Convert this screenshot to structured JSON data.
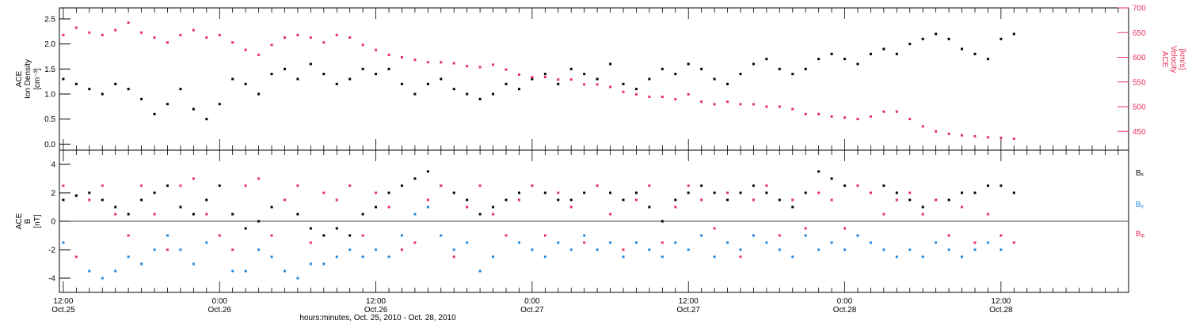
{
  "colors": {
    "black": "#000000",
    "red": "#e8305a",
    "blue": "#1f86e0"
  },
  "x_axis": {
    "title": "hours:minutes, Oct. 25, 2010 - Oct. 28, 2010",
    "ticks": [
      {
        "hours": 12,
        "time": "12:00",
        "date": "Oct.25"
      },
      {
        "hours": 24,
        "time": "0:00",
        "date": "Oct.26"
      },
      {
        "hours": 36,
        "time": "12:00",
        "date": "Oct.26"
      },
      {
        "hours": 48,
        "time": "0:00",
        "date": "Oct.27"
      },
      {
        "hours": 60,
        "time": "12:00",
        "date": "Oct.27"
      },
      {
        "hours": 72,
        "time": "0:00",
        "date": "Oct.28"
      },
      {
        "hours": 84,
        "time": "12:00",
        "date": "Oct.28"
      }
    ],
    "range_hours": [
      11.7,
      93.8
    ]
  },
  "chart_data": [
    {
      "type": "scatter",
      "title": "",
      "xlabel": "hours:minutes, Oct. 25, 2010 - Oct. 28, 2010",
      "x_units": "hours after Oct. 25 00:00",
      "ylabel_left": [
        "ACE",
        "Ion Density",
        "[cm⁻³]"
      ],
      "ylabel_right": [
        "ACE",
        "Velocity",
        "[km/s]"
      ],
      "ylim_left": [
        -0.12,
        2.72
      ],
      "ylim_right": [
        412,
        700
      ],
      "yticks_left": [
        "0.0",
        "0.5",
        "1.0",
        "1.5",
        "2.0",
        "2.5"
      ],
      "yticks_right": [
        "450",
        "500",
        "550",
        "600",
        "650",
        "700"
      ],
      "series": [
        {
          "axis": "left",
          "color": "#000000",
          "x": [
            12,
            13,
            14,
            15,
            16,
            17,
            18,
            19,
            20,
            21,
            22,
            23,
            24,
            25,
            26,
            27,
            28,
            29,
            30,
            31,
            32,
            33,
            34,
            35,
            36,
            37,
            38,
            39,
            40,
            41,
            42,
            43,
            44,
            45,
            46,
            47,
            48,
            49,
            50,
            51,
            52,
            53,
            54,
            55,
            56,
            57,
            58,
            59,
            60,
            61,
            62,
            63,
            64,
            65,
            66,
            67,
            68,
            69,
            70,
            71,
            72,
            73,
            74,
            75,
            76,
            77,
            78,
            79,
            80,
            81,
            82,
            83,
            84,
            85
          ],
          "y": [
            1.3,
            1.2,
            1.1,
            1.0,
            1.2,
            1.1,
            0.9,
            0.6,
            0.8,
            1.1,
            0.7,
            0.5,
            0.8,
            1.3,
            1.2,
            1.0,
            1.4,
            1.5,
            1.3,
            1.6,
            1.4,
            1.2,
            1.3,
            1.5,
            1.4,
            1.5,
            1.2,
            1.0,
            1.2,
            1.3,
            1.1,
            1.0,
            0.9,
            1.0,
            1.2,
            1.1,
            1.3,
            1.4,
            1.2,
            1.5,
            1.4,
            1.3,
            1.6,
            1.2,
            1.1,
            1.3,
            1.5,
            1.4,
            1.6,
            1.5,
            1.3,
            1.2,
            1.4,
            1.6,
            1.7,
            1.5,
            1.4,
            1.5,
            1.7,
            1.8,
            1.7,
            1.6,
            1.8,
            1.9,
            1.8,
            2.0,
            2.1,
            2.2,
            2.1,
            1.9,
            1.8,
            1.7,
            2.1,
            2.2
          ]
        },
        {
          "axis": "right",
          "color": "#e8305a",
          "x": [
            12,
            13,
            14,
            15,
            16,
            17,
            18,
            19,
            20,
            21,
            22,
            23,
            24,
            25,
            26,
            27,
            28,
            29,
            30,
            31,
            32,
            33,
            34,
            35,
            36,
            37,
            38,
            39,
            40,
            41,
            42,
            43,
            44,
            45,
            46,
            47,
            48,
            49,
            50,
            51,
            52,
            53,
            54,
            55,
            56,
            57,
            58,
            59,
            60,
            61,
            62,
            63,
            64,
            65,
            66,
            67,
            68,
            69,
            70,
            71,
            72,
            73,
            74,
            75,
            76,
            77,
            78,
            79,
            80,
            81,
            82,
            83,
            84,
            85
          ],
          "y": [
            645,
            660,
            650,
            645,
            655,
            670,
            650,
            640,
            630,
            645,
            655,
            640,
            645,
            630,
            615,
            605,
            625,
            640,
            645,
            640,
            630,
            645,
            640,
            625,
            615,
            605,
            600,
            595,
            590,
            590,
            588,
            582,
            580,
            585,
            575,
            565,
            560,
            560,
            555,
            555,
            545,
            545,
            540,
            530,
            525,
            520,
            520,
            515,
            525,
            510,
            505,
            510,
            505,
            505,
            500,
            500,
            495,
            485,
            485,
            480,
            478,
            475,
            480,
            490,
            490,
            475,
            460,
            450,
            445,
            442,
            440,
            438,
            437,
            435
          ]
        }
      ]
    },
    {
      "type": "scatter",
      "title": "",
      "xlabel": "hours:minutes, Oct. 25, 2010 - Oct. 28, 2010",
      "x_units": "hours after Oct. 25 00:00",
      "ylabel": [
        "ACE",
        "B",
        "[nT]"
      ],
      "ylim": [
        -5.0,
        5.0
      ],
      "yticks": [
        "-4",
        "-2",
        "0",
        "2",
        "4"
      ],
      "zero_line": true,
      "legend_position": "right",
      "series": [
        {
          "name": "Bₓ",
          "color": "#000000",
          "x": [
            12,
            13,
            14,
            15,
            16,
            17,
            18,
            19,
            20,
            21,
            22,
            23,
            24,
            25,
            26,
            27,
            28,
            29,
            30,
            31,
            32,
            33,
            34,
            35,
            36,
            37,
            38,
            39,
            40,
            41,
            42,
            43,
            44,
            45,
            46,
            47,
            48,
            49,
            50,
            51,
            52,
            53,
            54,
            55,
            56,
            57,
            58,
            59,
            60,
            61,
            62,
            63,
            64,
            65,
            66,
            67,
            68,
            69,
            70,
            71,
            72,
            73,
            74,
            75,
            76,
            77,
            78,
            79,
            80,
            81,
            82,
            83,
            84,
            85
          ],
          "y": [
            1.5,
            1.8,
            2.0,
            1.5,
            1.0,
            0.5,
            1.5,
            2.0,
            2.5,
            1.0,
            0.5,
            1.5,
            2.5,
            0.5,
            -0.5,
            0.0,
            1.0,
            1.5,
            0.5,
            -0.5,
            -1.0,
            -0.5,
            -1.0,
            0.5,
            1.0,
            2.0,
            2.5,
            3.0,
            3.5,
            2.5,
            2.0,
            1.5,
            0.5,
            1.0,
            1.5,
            2.0,
            2.5,
            2.0,
            1.5,
            1.5,
            2.0,
            2.5,
            2.0,
            1.5,
            2.0,
            1.0,
            0.0,
            1.5,
            2.0,
            2.5,
            2.0,
            1.5,
            2.0,
            2.5,
            2.0,
            1.5,
            1.0,
            2.0,
            3.5,
            3.0,
            2.5,
            2.5,
            2.0,
            2.5,
            2.0,
            1.5,
            1.0,
            1.5,
            1.5,
            2.0,
            2.0,
            2.5,
            2.5,
            2.0
          ]
        },
        {
          "name": "Bᵧ",
          "color": "#1f86e0",
          "x": [
            12,
            13,
            14,
            15,
            16,
            17,
            18,
            19,
            20,
            21,
            22,
            23,
            24,
            25,
            26,
            27,
            28,
            29,
            30,
            31,
            32,
            33,
            34,
            35,
            36,
            37,
            38,
            39,
            40,
            41,
            42,
            43,
            44,
            45,
            46,
            47,
            48,
            49,
            50,
            51,
            52,
            53,
            54,
            55,
            56,
            57,
            58,
            59,
            60,
            61,
            62,
            63,
            64,
            65,
            66,
            67,
            68,
            69,
            70,
            71,
            72,
            73,
            74,
            75,
            76,
            77,
            78,
            79,
            80,
            81,
            82,
            83,
            84,
            85
          ],
          "y": [
            -1.5,
            -2.5,
            -3.5,
            -4.0,
            -3.5,
            -2.5,
            -3.0,
            -2.0,
            -1.0,
            -2.0,
            -3.0,
            -1.5,
            -1.0,
            -3.5,
            -3.5,
            -2.0,
            -2.5,
            -3.5,
            -4.0,
            -3.0,
            -3.0,
            -2.5,
            -2.0,
            -2.5,
            -2.0,
            -2.5,
            -1.0,
            0.5,
            1.0,
            -1.0,
            -2.0,
            -1.5,
            -3.5,
            -2.5,
            -1.0,
            -1.5,
            -2.0,
            -2.5,
            -1.5,
            -2.0,
            -1.0,
            -2.0,
            -1.5,
            -2.5,
            -1.5,
            -2.0,
            -2.5,
            -1.5,
            -2.0,
            -1.0,
            -2.5,
            -1.5,
            -2.0,
            -1.0,
            -1.5,
            -2.0,
            -2.5,
            -1.0,
            -2.0,
            -1.5,
            -2.0,
            -1.0,
            -1.5,
            -2.0,
            -2.5,
            -2.0,
            -2.5,
            -1.5,
            -2.0,
            -2.5,
            -2.0,
            -1.5,
            -2.0,
            -1.5
          ]
        },
        {
          "name": "Bᵩ",
          "color": "#e8305a",
          "x": [
            12,
            13,
            14,
            15,
            16,
            17,
            18,
            19,
            20,
            21,
            22,
            23,
            24,
            25,
            26,
            27,
            28,
            29,
            30,
            31,
            32,
            33,
            34,
            35,
            36,
            37,
            38,
            39,
            40,
            41,
            42,
            43,
            44,
            45,
            46,
            47,
            48,
            49,
            50,
            51,
            52,
            53,
            54,
            55,
            56,
            57,
            58,
            59,
            60,
            61,
            62,
            63,
            64,
            65,
            66,
            67,
            68,
            69,
            70,
            71,
            72,
            73,
            74,
            75,
            76,
            77,
            78,
            79,
            80,
            81,
            82,
            83,
            84,
            85
          ],
          "y": [
            2.5,
            -2.5,
            1.5,
            2.5,
            0.5,
            -1.0,
            2.5,
            0.5,
            -2.0,
            2.5,
            3.0,
            0.5,
            -1.0,
            -2.0,
            2.5,
            3.0,
            -1.0,
            1.5,
            2.5,
            -1.5,
            2.0,
            1.5,
            2.5,
            -1.0,
            2.0,
            1.0,
            -2.0,
            -1.5,
            1.5,
            2.5,
            -2.5,
            1.0,
            2.5,
            0.5,
            -1.0,
            1.5,
            2.5,
            -1.0,
            2.0,
            1.0,
            -1.5,
            2.5,
            0.5,
            -2.0,
            1.5,
            2.5,
            -1.5,
            1.0,
            2.5,
            1.5,
            -0.5,
            2.0,
            -2.5,
            1.5,
            2.5,
            -1.0,
            1.5,
            -0.5,
            2.0,
            1.5,
            -0.5,
            2.5,
            2.0,
            0.5,
            1.5,
            2.0,
            0.5,
            1.5,
            -1.0,
            1.0,
            -1.5,
            0.5,
            -1.0,
            -1.5
          ]
        }
      ]
    }
  ]
}
